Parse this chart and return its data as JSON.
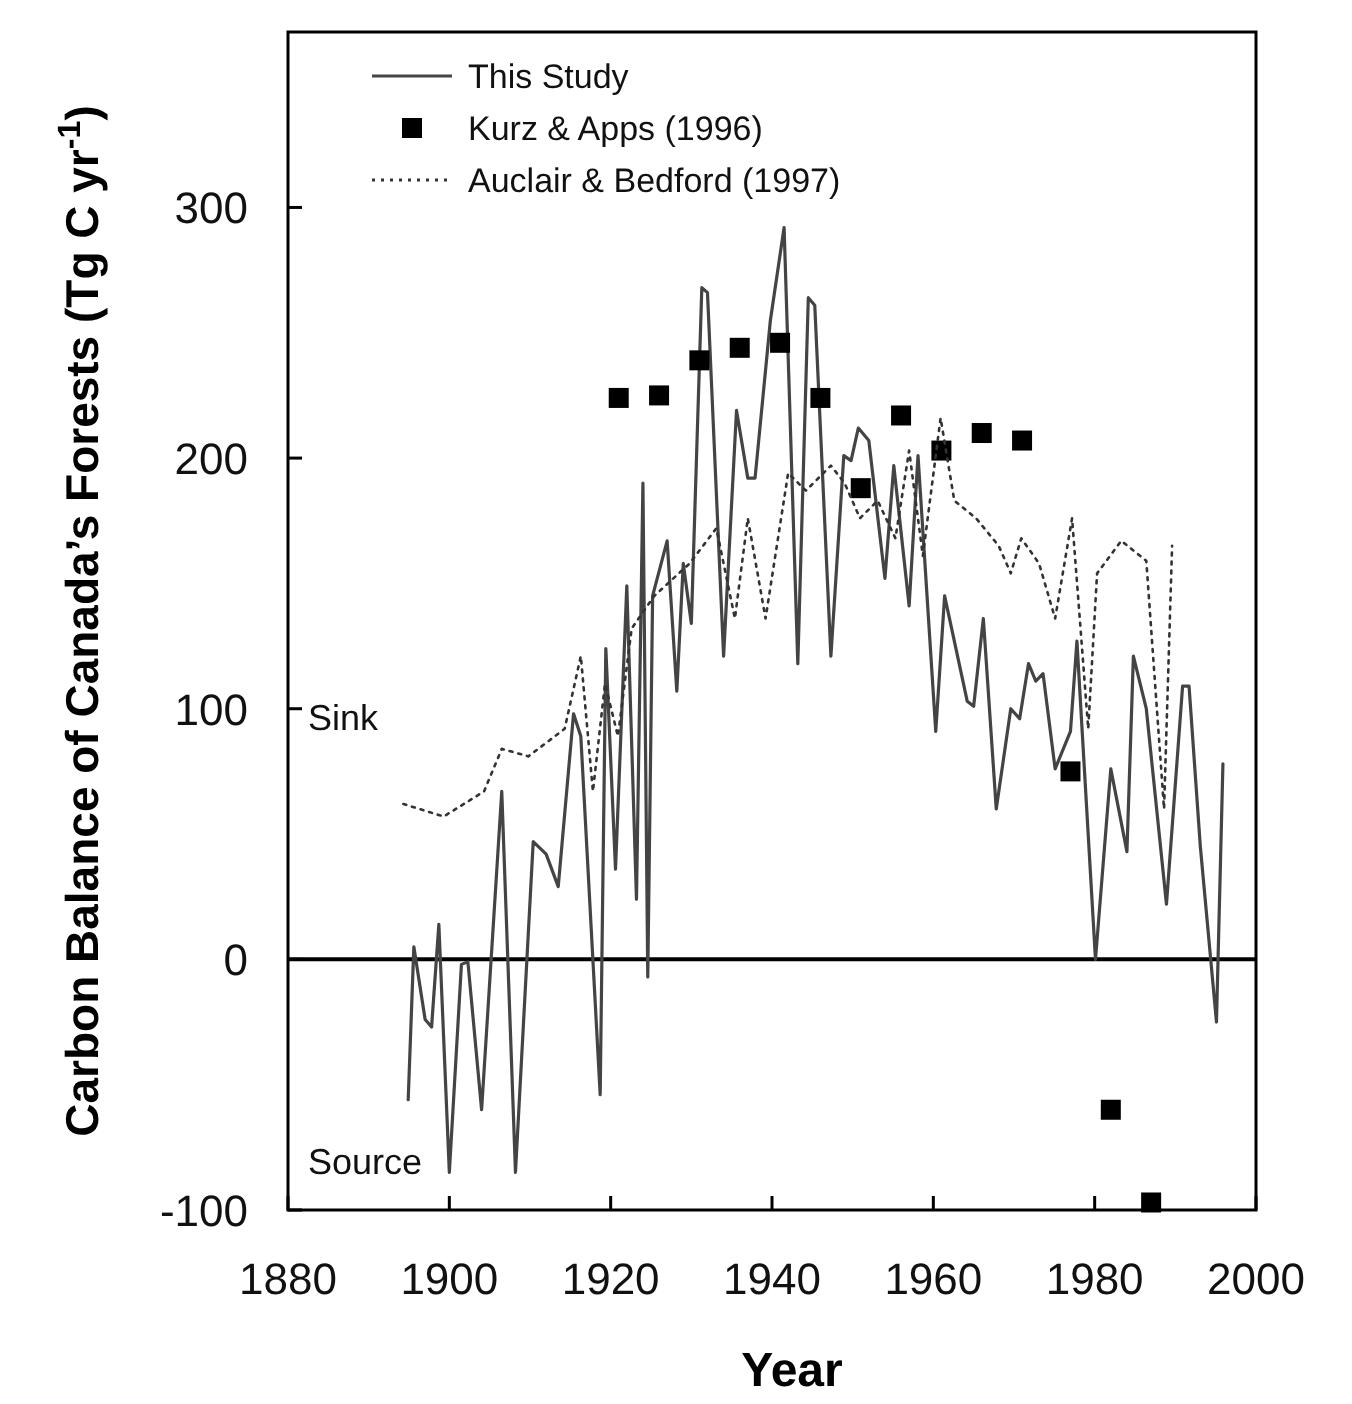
{
  "chart_data": {
    "type": "line",
    "xlabel": "Year",
    "ylabel": "Carbon Balance of Canada’s Forests (Tg C yr$^{-1}$)",
    "xlim": [
      1880,
      2000
    ],
    "xticks": [
      1880,
      1900,
      1920,
      1940,
      1960,
      1980,
      2000
    ],
    "ylim": [
      -100,
      370
    ],
    "yticks": [
      -100,
      0,
      100,
      200,
      300
    ],
    "grid": false,
    "legend": "top left",
    "ref_lines": [
      {
        "axis": "y",
        "value": 0,
        "color": "#000000",
        "line_style": "solid"
      }
    ],
    "annotations": [
      "Sink",
      "Source"
    ],
    "series": [
      {
        "name": "This Study",
        "line_style": "solid",
        "marker": "none",
        "color": "#444444",
        "x": [
          1894.9,
          1895.6,
          1897,
          1897.8,
          1898.7,
          1900,
          1901.5,
          1902.3,
          1904,
          1906.5,
          1908.2,
          1910.4,
          1912,
          1913.5,
          1915.4,
          1916.3,
          1918.7,
          1919.4,
          1920.6,
          1922,
          1923.2,
          1924,
          1924.6,
          1925.2,
          1927,
          1928.2,
          1929,
          1930,
          1931.3,
          1932,
          1934,
          1935.6,
          1937,
          1937.9,
          1939.8,
          1941.5,
          1943.2,
          1944.5,
          1945.3,
          1947.3,
          1948.9,
          1949.8,
          1950.7,
          1952,
          1954,
          1955.1,
          1957,
          1958.1,
          1960.3,
          1961.4,
          1964.2,
          1965,
          1966.2,
          1967.8,
          1969.6,
          1970.7,
          1971.8,
          1972.7,
          1973.6,
          1975.1,
          1977,
          1977.8,
          1980.1,
          1982,
          1984,
          1984.8,
          1986.4,
          1988.9,
          1990.9,
          1991.7,
          1993.1,
          1995.1,
          1995.9
        ],
        "values": [
          -56,
          5,
          -24,
          -27,
          14,
          -85,
          -2,
          -1,
          -60,
          67,
          -85,
          47,
          42,
          29,
          98,
          89,
          -54,
          124,
          36,
          149,
          24,
          190,
          -7,
          145,
          167,
          107,
          158,
          134,
          268,
          266,
          121,
          219,
          192,
          192,
          255,
          292,
          118,
          264,
          261,
          121,
          201,
          199,
          212,
          207,
          152,
          197,
          141,
          201,
          91,
          145,
          103,
          101,
          136,
          60,
          100,
          96,
          118,
          111,
          114,
          76,
          91,
          127,
          0,
          76,
          43,
          121,
          100,
          22,
          109,
          109,
          45,
          -25,
          78
        ]
      },
      {
        "name": "Kurz & Apps (1996)",
        "type": "scatter",
        "marker": "square",
        "color": "#000000",
        "x": [
          1921,
          1926,
          1931,
          1936,
          1941,
          1946,
          1951,
          1956,
          1961,
          1966,
          1971,
          1977,
          1982,
          1987
        ],
        "values": [
          224,
          225,
          239,
          244,
          246,
          224,
          188,
          217,
          203,
          210,
          207,
          75,
          -60,
          -97
        ]
      },
      {
        "name": "Auclair & Bedford (1997)",
        "line_style": "dotted",
        "marker": "none",
        "color": "#333333",
        "x": [
          1894.3,
          1899.3,
          1904.3,
          1906.5,
          1909.8,
          1914.3,
          1916.3,
          1917.8,
          1919.3,
          1920.9,
          1922.6,
          1925.4,
          1929.8,
          1933.1,
          1935.4,
          1937,
          1939.2,
          1942,
          1944.2,
          1947.3,
          1949,
          1950.9,
          1953.1,
          1955.3,
          1957,
          1958.7,
          1960.9,
          1962.6,
          1965.3,
          1968.1,
          1969.6,
          1970.9,
          1973.1,
          1975.1,
          1977.2,
          1979.2,
          1980.3,
          1983.3,
          1986.4,
          1988.6,
          1989.6
        ],
        "values": [
          62,
          57,
          67,
          84,
          81,
          92,
          121,
          67,
          110,
          89,
          132,
          145,
          158,
          172,
          136,
          176,
          136,
          194,
          187,
          197,
          190,
          176,
          183,
          168,
          203,
          161,
          216,
          183,
          176,
          165,
          154,
          168,
          158,
          136,
          176,
          92,
          154,
          167,
          159,
          60,
          165
        ]
      }
    ]
  }
}
